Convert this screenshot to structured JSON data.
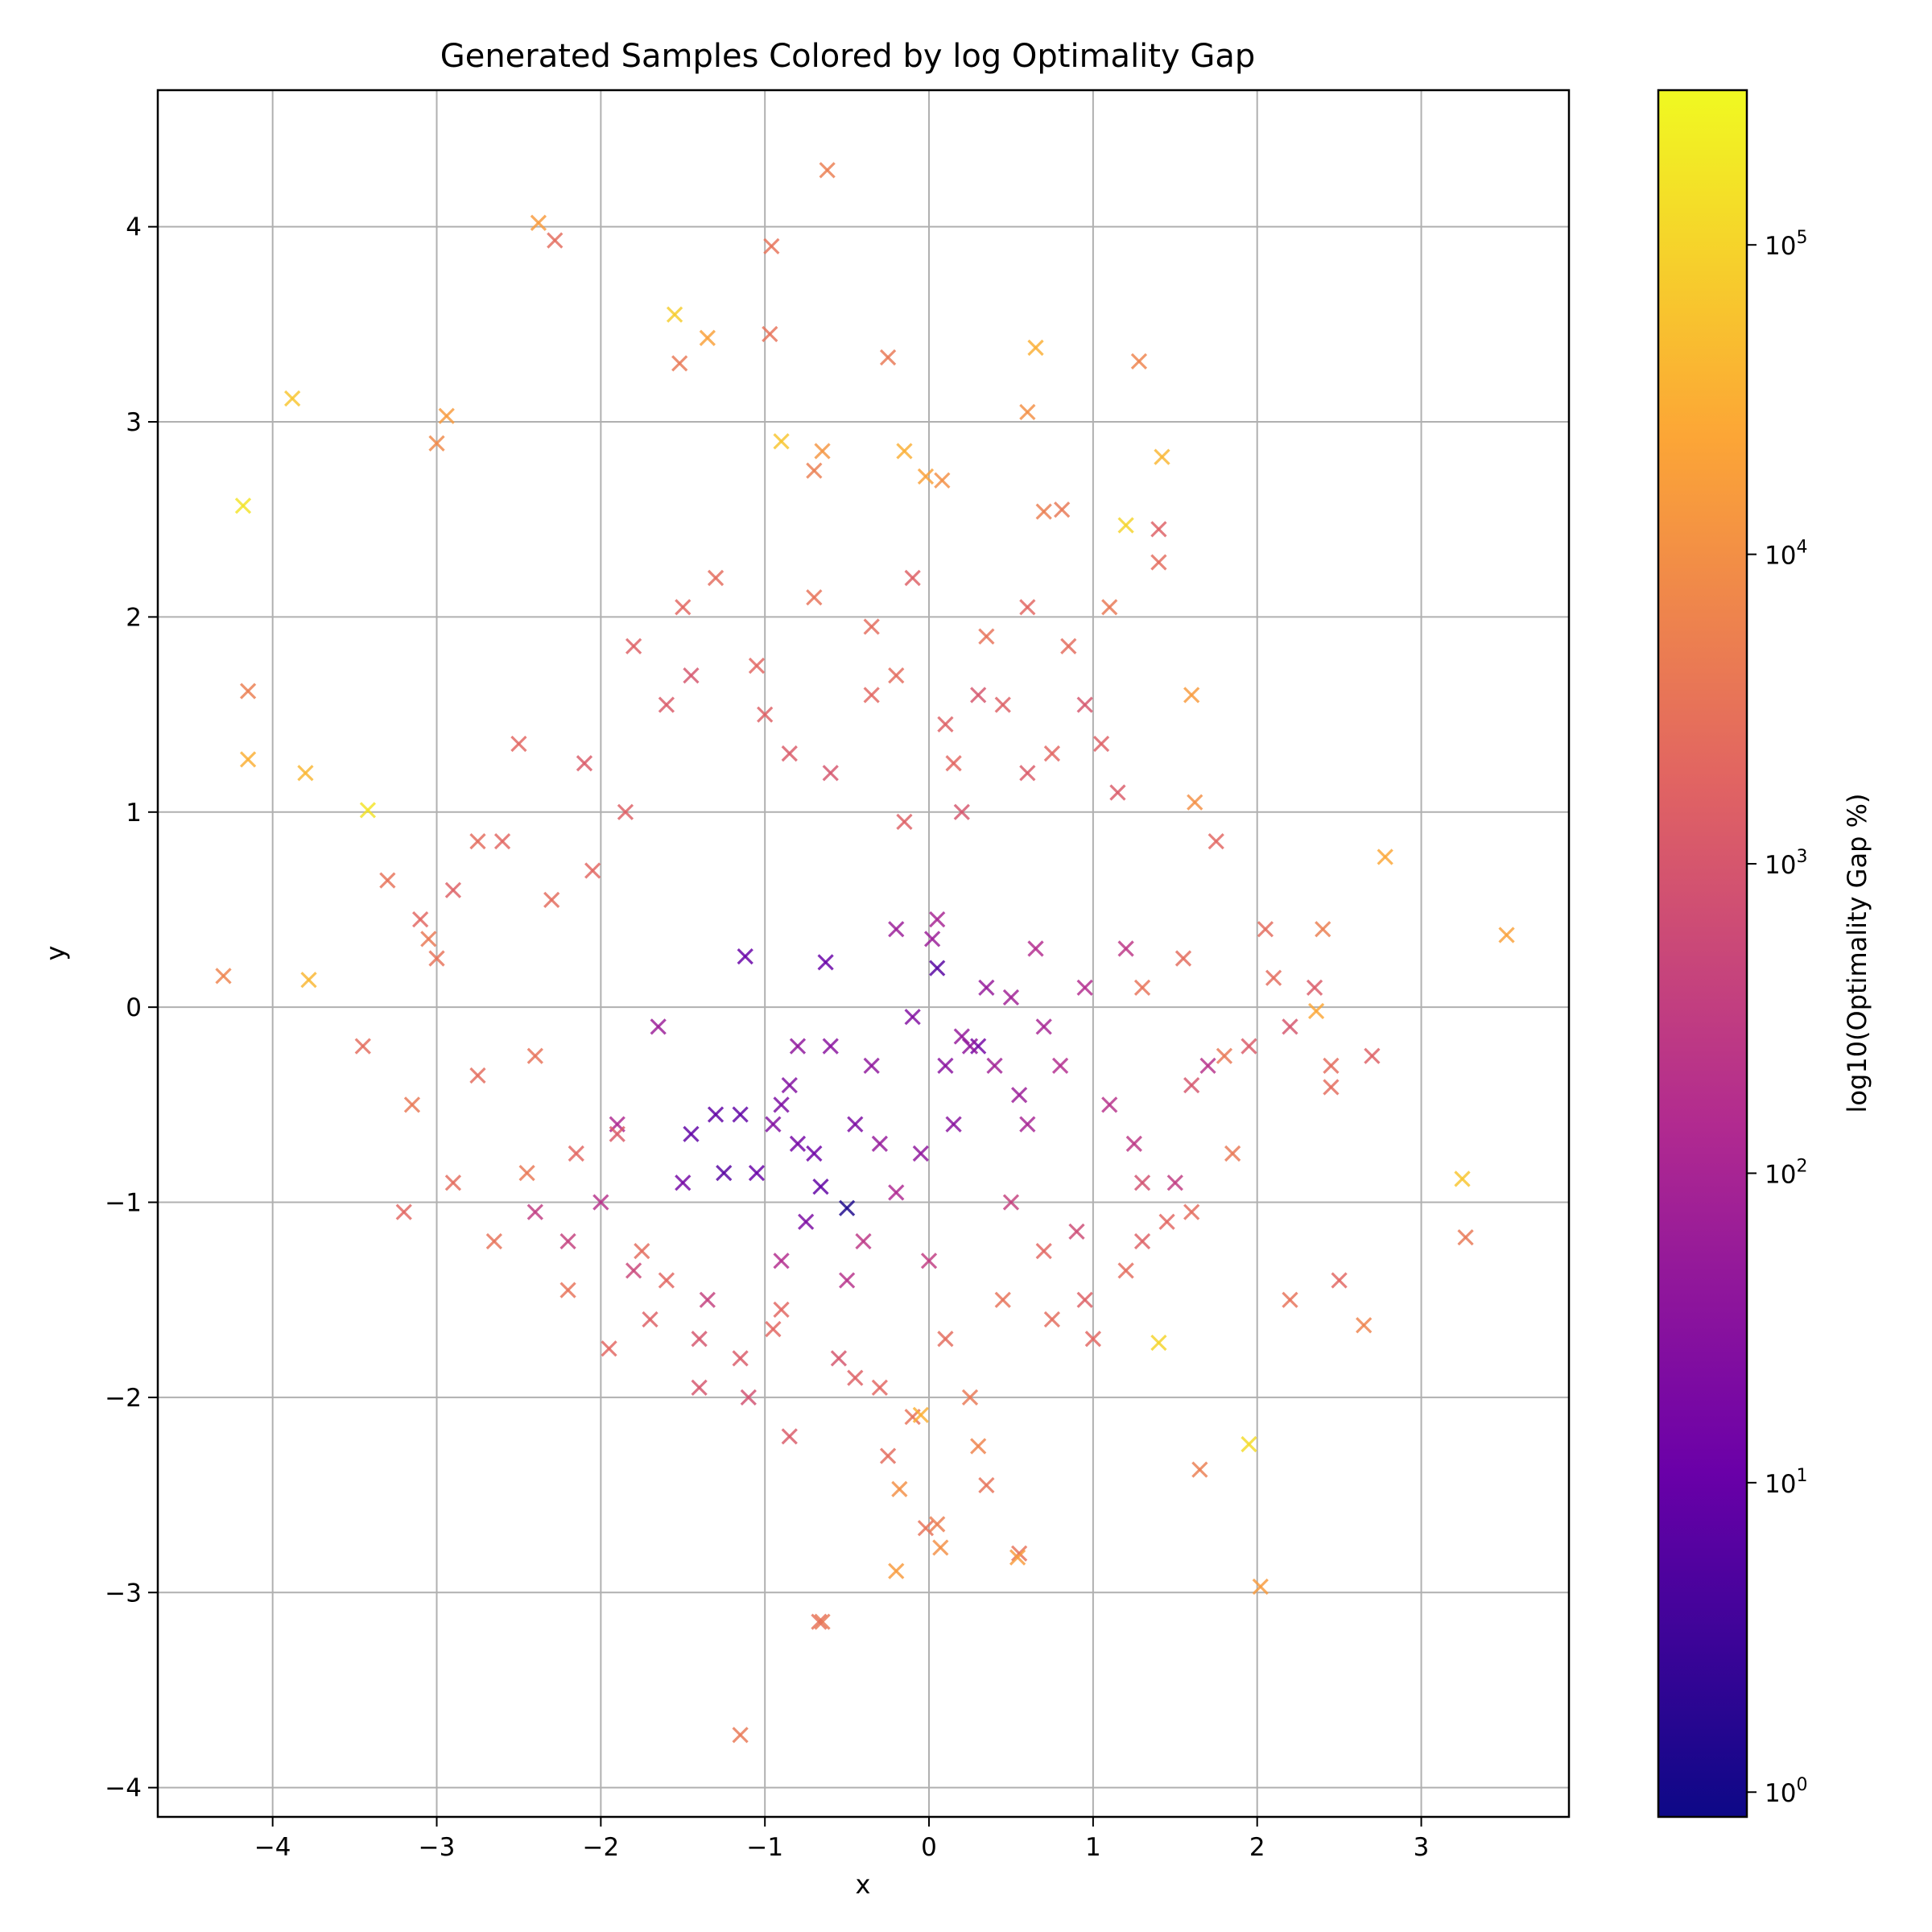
{
  "chart_data": {
    "type": "scatter",
    "title": "Generated Samples Colored by log Optimality Gap",
    "xlabel": "x",
    "ylabel": "y",
    "xlim": [
      -4.7,
      3.9
    ],
    "ylim": [
      -4.15,
      4.7
    ],
    "xticks": [
      -4,
      -3,
      -2,
      -1,
      0,
      1,
      2,
      3
    ],
    "yticks": [
      -4,
      -3,
      -2,
      -1,
      0,
      1,
      2,
      3,
      4
    ],
    "x_tick_labels": [
      "−4",
      "−3",
      "−2",
      "−1",
      "0",
      "1",
      "2",
      "3"
    ],
    "y_tick_labels": [
      "−4",
      "−3",
      "−2",
      "−1",
      "0",
      "1",
      "2",
      "3",
      "4"
    ],
    "grid": true,
    "marker": "x",
    "colormap": "plasma",
    "colorbar": {
      "label": "log10(Optimality Gap %)",
      "scale": "log",
      "range_log10": [
        -0.08,
        5.5
      ],
      "ticks_log10": [
        0,
        1,
        2,
        3,
        4,
        5
      ],
      "tick_base": "10",
      "tick_exponents": [
        "0",
        "1",
        "2",
        "3",
        "4",
        "5"
      ],
      "colors": [
        "#0d0887",
        "#6a00a8",
        "#b12a90",
        "#e16462",
        "#fca636",
        "#f0f921"
      ]
    },
    "series": [
      {
        "name": "generated samples",
        "x": [
          -1.12,
          -0.63,
          -0.5,
          -0.66,
          -0.7,
          0.05,
          0.1,
          0.3,
          -0.9,
          -0.95,
          -0.8,
          -1.05,
          -1.15,
          -0.75,
          -0.85,
          -0.35,
          -0.2,
          0.2,
          0.4,
          0.55,
          0.6,
          0.15,
          0.25,
          -0.1,
          -0.6,
          -0.45,
          -1.3,
          -1.25,
          -1.45,
          -1.5,
          -0.2,
          0.02,
          0.35,
          0.7,
          0.8,
          1.1,
          1.25,
          1.5,
          1.7,
          0.95,
          0.5,
          -0.05,
          -1.65,
          -1.9,
          -2.0,
          -2.2,
          -2.4,
          -1.8,
          -1.35,
          -0.9,
          -0.5,
          -0.4,
          0.0,
          0.5,
          0.9,
          1.3,
          1.6,
          1.95,
          2.2,
          2.35,
          2.45,
          1.2,
          0.65,
          0.05,
          -0.3,
          -0.8,
          -0.85,
          -0.35,
          -0.2,
          0.1,
          0.3,
          0.45,
          0.6,
          0.75,
          0.95,
          1.05,
          1.15,
          0.2,
          0.15,
          -0.15,
          -0.6,
          -1.0,
          -1.45,
          -1.6,
          -1.85,
          -2.05,
          -2.3,
          -2.6,
          -2.9,
          -3.1,
          -3.3,
          -3.05,
          -2.75,
          -2.5,
          -2.1,
          -1.8,
          -1.5,
          -1.3,
          -1.05,
          -0.7,
          -0.35,
          -0.1,
          0.35,
          0.6,
          0.85,
          1.1,
          1.4,
          1.75,
          2.05,
          -0.95,
          -1.15,
          -1.4,
          -1.7,
          -1.95,
          -2.2,
          -2.45,
          -2.65,
          -2.9,
          -3.15,
          -3.45,
          -3.2,
          -3.0,
          -2.75,
          -2.4,
          -2.15,
          -1.9,
          -1.75,
          -1.6,
          -1.4,
          -1.1,
          -0.85,
          -0.55,
          -0.3,
          -0.1,
          0.1,
          0.25,
          0.45,
          0.7,
          0.95,
          1.2,
          1.45,
          0.35,
          0.05,
          -0.25,
          -0.45,
          -0.65,
          -0.9,
          0.3,
          0.55,
          0.75,
          1.0,
          1.3,
          1.6,
          1.85,
          2.2,
          2.5,
          2.7,
          2.4,
          2.1,
          1.8,
          1.55,
          1.3,
          -0.62,
          -2.38,
          -2.28,
          -0.96,
          -1.55,
          -1.52,
          -1.35,
          -0.97,
          -0.25,
          0.65,
          1.28,
          -3.88,
          -4.18,
          -2.94,
          -3.0,
          -0.65,
          -0.7,
          -0.15,
          0.08,
          1.42,
          -0.02,
          0.81,
          0.6,
          1.2,
          -0.9,
          0.7,
          1.4,
          1.6,
          -4.15,
          -4.15,
          -3.8,
          -4.3,
          -3.78,
          -3.42,
          2.78,
          3.52,
          3.25,
          3.27,
          2.65,
          2.02,
          1.95,
          1.65,
          -0.67,
          -1.15,
          -0.02,
          -0.2,
          -0.18,
          0.54,
          2.36,
          2.45,
          1.62,
          1.4,
          -0.05,
          0.07
        ],
        "y": [
          0.26,
          0.23,
          -1.03,
          -0.92,
          -0.75,
          0.2,
          -0.3,
          -0.2,
          -0.5,
          -0.6,
          -0.7,
          -0.85,
          -0.55,
          -1.1,
          -0.4,
          -0.3,
          0.4,
          -0.15,
          -0.3,
          -0.45,
          -0.6,
          -0.6,
          -0.2,
          -0.05,
          -0.2,
          -0.6,
          -0.55,
          -0.85,
          -0.65,
          -0.9,
          -0.95,
          0.35,
          0.1,
          -0.1,
          -0.3,
          -0.5,
          -0.7,
          -0.9,
          -0.3,
          0.1,
          0.05,
          -0.75,
          -0.1,
          -0.6,
          -1.0,
          -1.2,
          -1.05,
          -1.35,
          -1.5,
          -1.3,
          -1.4,
          -1.2,
          -1.3,
          -1.0,
          -1.15,
          -0.9,
          -0.4,
          -0.2,
          -0.1,
          0.1,
          -0.3,
          0.3,
          0.3,
          0.45,
          -0.7,
          -0.2,
          1.3,
          1.6,
          1.7,
          1.45,
          1.6,
          1.55,
          1.2,
          1.3,
          1.55,
          1.35,
          1.1,
          1.0,
          1.25,
          0.95,
          1.2,
          1.5,
          1.7,
          1.55,
          1.0,
          0.7,
          0.55,
          0.85,
          0.6,
          0.45,
          0.65,
          0.35,
          0.85,
          1.35,
          1.25,
          1.85,
          2.05,
          2.2,
          1.75,
          2.1,
          1.95,
          2.2,
          1.9,
          2.05,
          1.85,
          2.05,
          2.45,
          0.85,
          0.4,
          -1.65,
          -1.8,
          -1.95,
          -1.6,
          -1.75,
          -1.45,
          -0.85,
          -1.2,
          -0.9,
          -0.5,
          -0.2,
          -1.05,
          0.25,
          -0.35,
          -0.25,
          -0.75,
          -0.65,
          -1.25,
          -1.4,
          -1.7,
          -2.0,
          -2.2,
          -1.8,
          -1.95,
          -2.1,
          -1.7,
          -2.0,
          -1.5,
          -1.25,
          -1.5,
          -1.35,
          -1.1,
          -2.45,
          -2.65,
          -2.3,
          -1.9,
          -3.15,
          -1.55,
          -2.25,
          -2.8,
          -1.6,
          -1.7,
          -1.2,
          -1.05,
          -0.75,
          -1.5,
          -1.4,
          -0.25,
          0.4,
          0.15,
          -0.25,
          0.25,
          0.1,
          4.29,
          4.02,
          3.93,
          3.9,
          3.55,
          3.3,
          3.43,
          3.45,
          3.33,
          3.38,
          3.31,
          3.12,
          2.57,
          3.03,
          2.89,
          2.85,
          2.75,
          2.85,
          2.7,
          2.82,
          2.72,
          2.55,
          3.05,
          2.47,
          2.9,
          2.54,
          2.28,
          1.6,
          1.62,
          1.27,
          1.2,
          0.16,
          0.14,
          1.01,
          0.77,
          0.37,
          -0.88,
          -1.18,
          -1.63,
          -2.97,
          -2.24,
          -2.37,
          -3.15,
          -3.73,
          -2.67,
          -2.89,
          -2.47,
          -2.82,
          -0.02,
          -0.41,
          1.05,
          -1.72,
          -2.09,
          -2.77
        ],
        "log10_gap": [
          1.0,
          1.0,
          0.1,
          0.9,
          1.1,
          0.8,
          1.5,
          1.2,
          1.3,
          1.4,
          1.2,
          1.0,
          0.9,
          1.3,
          1.4,
          1.6,
          1.8,
          1.7,
          1.9,
          1.8,
          2.0,
          1.5,
          1.6,
          1.4,
          1.5,
          1.3,
          0.9,
          0.8,
          0.9,
          1.2,
          2.1,
          1.8,
          1.7,
          2.0,
          2.2,
          2.3,
          2.4,
          2.5,
          2.3,
          2.2,
          1.9,
          1.6,
          1.8,
          2.1,
          2.3,
          2.6,
          2.5,
          2.7,
          2.6,
          2.2,
          2.3,
          2.4,
          2.5,
          2.6,
          2.8,
          2.9,
          3.0,
          3.1,
          3.0,
          3.1,
          3.4,
          2.4,
          2.2,
          2.0,
          1.7,
          1.6,
          3.1,
          3.3,
          3.4,
          3.2,
          3.0,
          3.2,
          3.1,
          3.3,
          3.0,
          3.2,
          3.1,
          3.0,
          3.3,
          3.2,
          3.0,
          3.2,
          3.0,
          3.1,
          3.2,
          3.3,
          3.4,
          3.3,
          3.2,
          3.3,
          3.5,
          3.6,
          3.4,
          3.3,
          3.1,
          3.2,
          3.3,
          3.4,
          3.3,
          3.5,
          3.4,
          3.2,
          3.5,
          3.3,
          3.4,
          3.6,
          3.2,
          3.3,
          3.4,
          3.3,
          3.1,
          3.0,
          3.2,
          3.3,
          3.5,
          3.6,
          3.5,
          3.4,
          3.6,
          3.4,
          3.3,
          3.5,
          3.4,
          3.5,
          3.3,
          3.1,
          3.4,
          3.3,
          3.0,
          2.9,
          3.1,
          3.0,
          3.3,
          3.5,
          3.4,
          3.6,
          3.5,
          3.3,
          3.2,
          3.4,
          3.3,
          3.5,
          3.7,
          3.4,
          3.2,
          3.6,
          3.3,
          3.8,
          3.5,
          3.4,
          3.3,
          3.2,
          3.4,
          3.6,
          3.5,
          3.3,
          3.2,
          3.7,
          3.4,
          3.6,
          3.4,
          3.5,
          3.7,
          4.2,
          3.4,
          3.5,
          4.9,
          3.6,
          4.3,
          3.5,
          3.6,
          4.5,
          3.8,
          4.8,
          5.2,
          4.2,
          3.9,
          4.1,
          3.7,
          4.5,
          4.0,
          4.6,
          4.3,
          3.6,
          4.0,
          5.0,
          4.8,
          3.7,
          3.4,
          4.2,
          3.7,
          4.5,
          4.6,
          3.8,
          4.6,
          5.2,
          4.4,
          4.3,
          4.8,
          3.6,
          3.8,
          4.2,
          5.1,
          3.7,
          3.5,
          3.6,
          3.5,
          4.2,
          4.0,
          4.2,
          4.4,
          3.4,
          4.0,
          5.0,
          4.5,
          4.0,
          4.4,
          4.4,
          5.0,
          4.3,
          4.0,
          4.5
        ]
      }
    ]
  }
}
